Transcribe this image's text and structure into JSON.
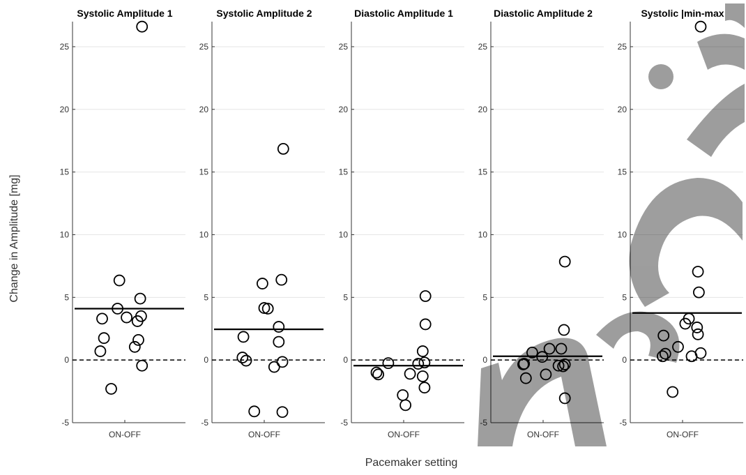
{
  "figure": {
    "ylabel": "Change in Amplitude [mg]",
    "xlabel": "Pacemaker setting",
    "watermark": "manuscript"
  },
  "chart_data": [
    {
      "type": "scatter",
      "title": "Systolic Amplitude 1",
      "categories": [
        "ON-OFF"
      ],
      "ylim": [
        -5,
        27
      ],
      "yticks": [
        -5,
        0,
        5,
        10,
        15,
        20,
        25
      ],
      "mean": 4.1,
      "reference": 0,
      "grid": true,
      "points": [
        [
          -0.25,
          3.3
        ],
        [
          -0.23,
          1.75
        ],
        [
          -0.27,
          0.7
        ],
        [
          -0.15,
          -2.3
        ],
        [
          -0.08,
          4.1
        ],
        [
          -0.06,
          6.35
        ],
        [
          0.02,
          3.4
        ],
        [
          0.11,
          1.05
        ],
        [
          0.14,
          3.1
        ],
        [
          0.15,
          1.6
        ],
        [
          0.17,
          4.9
        ],
        [
          0.18,
          3.5
        ],
        [
          0.19,
          -0.45
        ],
        [
          0.19,
          26.6
        ]
      ]
    },
    {
      "type": "scatter",
      "title": "Systolic Amplitude 2",
      "categories": [
        "ON-OFF"
      ],
      "ylim": [
        -5,
        27
      ],
      "yticks": [
        -5,
        0,
        5,
        10,
        15,
        20,
        25
      ],
      "mean": 2.45,
      "reference": 0,
      "grid": true,
      "points": [
        [
          -0.23,
          1.85
        ],
        [
          -0.24,
          0.2
        ],
        [
          -0.2,
          -0.05
        ],
        [
          -0.11,
          -4.1
        ],
        [
          -0.02,
          6.1
        ],
        [
          0.0,
          4.15
        ],
        [
          0.04,
          4.1
        ],
        [
          0.11,
          -0.55
        ],
        [
          0.16,
          2.65
        ],
        [
          0.16,
          1.45
        ],
        [
          0.19,
          6.4
        ],
        [
          0.2,
          -0.15
        ],
        [
          0.2,
          -4.15
        ],
        [
          0.21,
          16.85
        ]
      ]
    },
    {
      "type": "scatter",
      "title": "Diastolic Amplitude 1",
      "categories": [
        "ON-OFF"
      ],
      "ylim": [
        -5,
        27
      ],
      "yticks": [
        -5,
        0,
        5,
        10,
        15,
        20,
        25
      ],
      "mean": -0.45,
      "reference": 0,
      "grid": true,
      "points": [
        [
          -0.3,
          -1.0
        ],
        [
          -0.28,
          -1.15
        ],
        [
          -0.17,
          -0.25
        ],
        [
          -0.01,
          -2.8
        ],
        [
          0.02,
          -3.6
        ],
        [
          0.07,
          -1.1
        ],
        [
          0.16,
          -0.3
        ],
        [
          0.21,
          0.7
        ],
        [
          0.21,
          -1.3
        ],
        [
          0.23,
          -0.2
        ],
        [
          0.23,
          -2.2
        ],
        [
          0.24,
          5.1
        ],
        [
          0.24,
          2.85
        ]
      ]
    },
    {
      "type": "scatter",
      "title": "Diastolic Amplitude 2",
      "categories": [
        "ON-OFF"
      ],
      "ylim": [
        -5,
        27
      ],
      "yticks": [
        -5,
        0,
        5,
        10,
        15,
        20,
        25
      ],
      "mean": 0.3,
      "reference": 0,
      "grid": true,
      "points": [
        [
          -0.22,
          -0.35
        ],
        [
          -0.21,
          -0.3
        ],
        [
          -0.19,
          -1.45
        ],
        [
          -0.12,
          0.6
        ],
        [
          -0.01,
          0.25
        ],
        [
          0.03,
          -1.15
        ],
        [
          0.07,
          0.9
        ],
        [
          0.17,
          -0.45
        ],
        [
          0.2,
          0.9
        ],
        [
          0.22,
          -0.5
        ],
        [
          0.23,
          2.4
        ],
        [
          0.24,
          -0.35
        ],
        [
          0.24,
          7.85
        ],
        [
          0.24,
          -3.05
        ]
      ]
    },
    {
      "type": "scatter",
      "title": "Systolic |min-max",
      "categories": [
        "ON-OFF"
      ],
      "ylim": [
        -5,
        27
      ],
      "yticks": [
        -5,
        0,
        5,
        10,
        15,
        20,
        25
      ],
      "mean": 3.75,
      "reference": 0,
      "grid": true,
      "points": [
        [
          -0.21,
          1.95
        ],
        [
          -0.22,
          0.3
        ],
        [
          -0.19,
          0.5
        ],
        [
          -0.11,
          -2.55
        ],
        [
          -0.05,
          1.05
        ],
        [
          0.03,
          2.9
        ],
        [
          0.07,
          3.3
        ],
        [
          0.1,
          0.3
        ],
        [
          0.16,
          2.6
        ],
        [
          0.17,
          2.05
        ],
        [
          0.17,
          7.05
        ],
        [
          0.18,
          5.4
        ],
        [
          0.2,
          0.55
        ],
        [
          0.2,
          26.6
        ]
      ]
    }
  ]
}
